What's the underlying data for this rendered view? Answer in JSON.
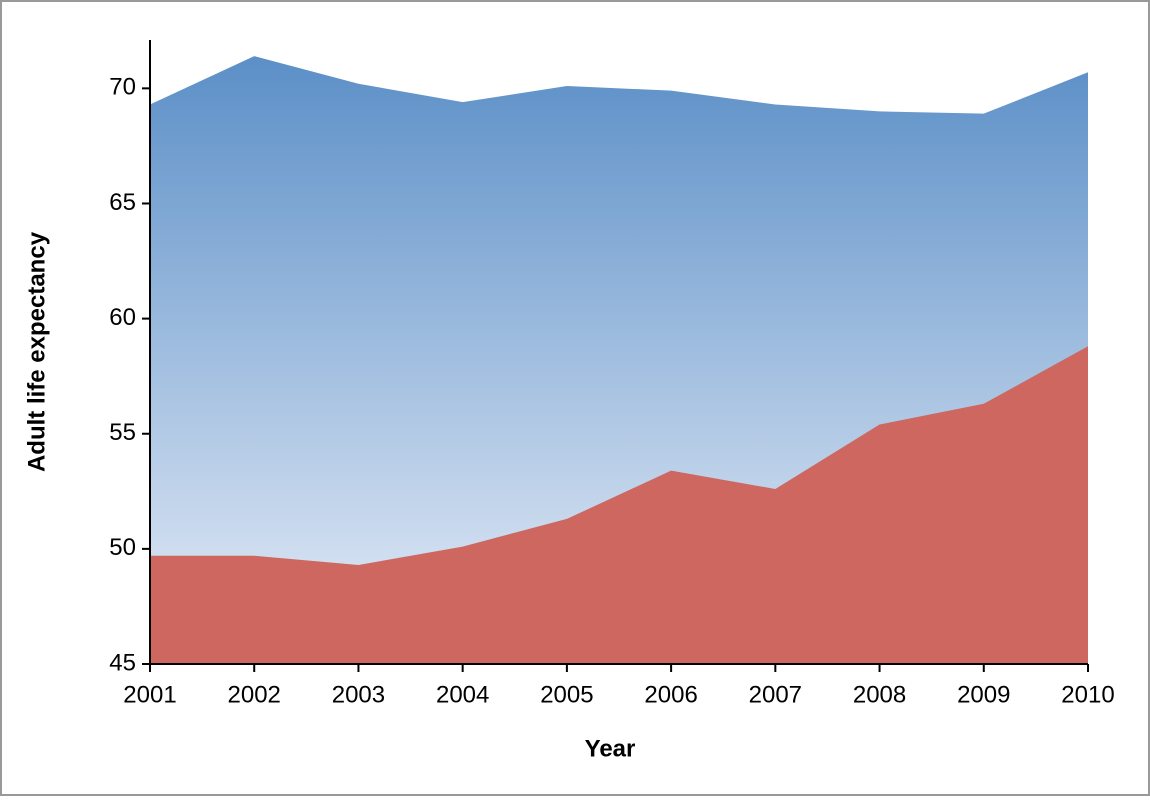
{
  "chart_data": {
    "type": "area",
    "x_label": "Year",
    "y_label": "Adult life expectancy",
    "categories": [
      "2001",
      "2002",
      "2003",
      "2004",
      "2005",
      "2006",
      "2007",
      "2008",
      "2009",
      "2010"
    ],
    "series": [
      {
        "color": "#5b8fc7",
        "gradient_to": "#e8eef8",
        "values": [
          69.3,
          71.4,
          70.2,
          69.4,
          70.1,
          69.9,
          69.3,
          69.0,
          68.9,
          70.7
        ]
      },
      {
        "color": "#cd6760",
        "values": [
          49.7,
          49.7,
          49.3,
          50.1,
          51.3,
          53.4,
          52.6,
          55.4,
          56.3,
          58.8
        ]
      }
    ],
    "ylim": [
      45,
      72.1
    ],
    "yticks": [
      45,
      50,
      55,
      60,
      65,
      70
    ],
    "grid": false
  }
}
